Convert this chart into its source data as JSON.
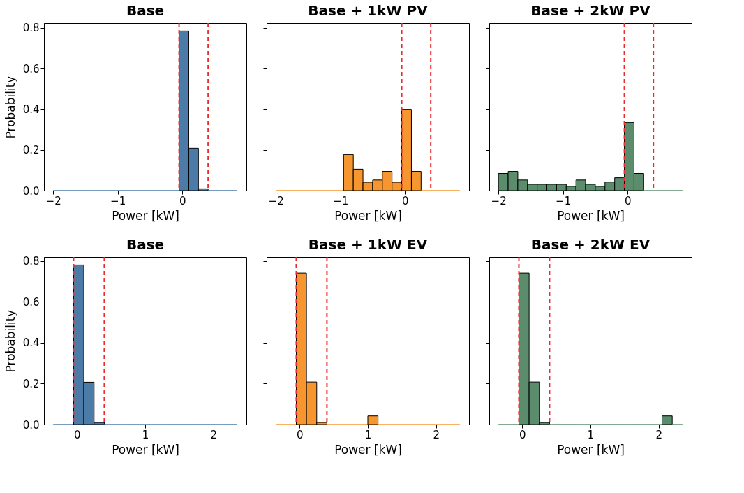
{
  "chart_data": [
    {
      "type": "histogram",
      "title": "Base",
      "xlabel": "Power [kW]",
      "ylabel": "Probability",
      "color": "#4b7ba6",
      "bins": [
        -2.0,
        -1.85,
        -1.7,
        -1.55,
        -1.4,
        -1.25,
        -1.1,
        -0.95,
        -0.8,
        -0.65,
        -0.5,
        -0.35,
        -0.2,
        -0.05,
        0.1,
        0.25,
        0.4,
        0.55,
        0.7,
        0.85
      ],
      "values": [
        0,
        0,
        0,
        0,
        0,
        0,
        0,
        0,
        0,
        0,
        0,
        0,
        0,
        0.784,
        0.208,
        0.009,
        0,
        0,
        0
      ],
      "xlim": [
        -2.1425,
        0.9925
      ],
      "xticks": [
        -2,
        -1,
        0
      ],
      "ylim": [
        0,
        0.823
      ],
      "yticks": [
        {
          "value": 0,
          "label": "0.0"
        },
        {
          "value": 0.2,
          "label": "0.2"
        },
        {
          "value": 0.4,
          "label": "0.4"
        },
        {
          "value": 0.6,
          "label": "0.6"
        },
        {
          "value": 0.8,
          "label": "0.8"
        }
      ],
      "grid": false,
      "ref_lines": [
        {
          "axis": "x",
          "value": -0.05,
          "color": "#ee2a2a",
          "line_style": "dashed"
        },
        {
          "axis": "x",
          "value": 0.4,
          "color": "#ee2a2a",
          "line_style": "dashed"
        }
      ]
    },
    {
      "type": "histogram",
      "title": "Base + 1kW PV",
      "xlabel": "Power [kW]",
      "color": "#f7962e",
      "tick_labels": "x",
      "bins": [
        -2.0,
        -1.85,
        -1.7,
        -1.55,
        -1.4,
        -1.25,
        -1.1,
        -0.95,
        -0.8,
        -0.65,
        -0.5,
        -0.35,
        -0.2,
        -0.05,
        0.1,
        0.25,
        0.4,
        0.55,
        0.7,
        0.85
      ],
      "values": [
        0,
        0,
        0,
        0,
        0,
        0,
        0,
        0.177,
        0.105,
        0.041,
        0.052,
        0.094,
        0.041,
        0.399,
        0.094,
        0,
        0,
        0,
        0
      ],
      "xlim": [
        -2.1425,
        0.9925
      ],
      "xticks": [
        -2,
        -1,
        0
      ],
      "ylim": [
        0,
        0.823
      ],
      "yticks": [
        0,
        0.2,
        0.4,
        0.6,
        0.8
      ],
      "grid": false,
      "ref_lines": [
        {
          "axis": "x",
          "value": -0.05,
          "color": "#ee2a2a",
          "line_style": "dashed"
        },
        {
          "axis": "x",
          "value": 0.4,
          "color": "#ee2a2a",
          "line_style": "dashed"
        }
      ]
    },
    {
      "type": "histogram",
      "title": "Base + 2kW PV",
      "xlabel": "Power [kW]",
      "color": "#5b8d6d",
      "tick_labels": "x",
      "bins": [
        -2.0,
        -1.85,
        -1.7,
        -1.55,
        -1.4,
        -1.25,
        -1.1,
        -0.95,
        -0.8,
        -0.65,
        -0.5,
        -0.35,
        -0.2,
        -0.05,
        0.1,
        0.25,
        0.4,
        0.55,
        0.7,
        0.85
      ],
      "values": [
        0.084,
        0.094,
        0.052,
        0.031,
        0.031,
        0.031,
        0.031,
        0.021,
        0.052,
        0.031,
        0.021,
        0.042,
        0.063,
        0.335,
        0.084,
        0,
        0,
        0,
        0
      ],
      "xlim": [
        -2.1425,
        0.9925
      ],
      "xticks": [
        -2,
        -1,
        0
      ],
      "ylim": [
        0,
        0.823
      ],
      "yticks": [
        0,
        0.2,
        0.4,
        0.6,
        0.8
      ],
      "grid": false,
      "ref_lines": [
        {
          "axis": "x",
          "value": -0.05,
          "color": "#ee2a2a",
          "line_style": "dashed"
        },
        {
          "axis": "x",
          "value": 0.4,
          "color": "#ee2a2a",
          "line_style": "dashed"
        }
      ]
    },
    {
      "type": "histogram",
      "title": "Base",
      "xlabel": "Power [kW]",
      "ylabel": "Probability",
      "color": "#4b7ba6",
      "bins": [
        -0.35,
        -0.2,
        -0.05,
        0.1,
        0.25,
        0.4,
        0.55,
        0.7,
        0.85,
        1.0,
        1.15,
        1.3,
        1.45,
        1.6,
        1.75,
        1.9,
        2.05,
        2.2,
        2.35
      ],
      "values": [
        0,
        0,
        0.781,
        0.207,
        0.01,
        0,
        0,
        0,
        0,
        0,
        0,
        0,
        0,
        0,
        0,
        0,
        0,
        0
      ],
      "xlim": [
        -0.485,
        2.485
      ],
      "xticks": [
        0,
        1,
        2
      ],
      "ylim": [
        0,
        0.82
      ],
      "yticks": [
        {
          "value": 0,
          "label": "0.0"
        },
        {
          "value": 0.2,
          "label": "0.2"
        },
        {
          "value": 0.4,
          "label": "0.4"
        },
        {
          "value": 0.6,
          "label": "0.6"
        },
        {
          "value": 0.8,
          "label": "0.8"
        }
      ],
      "grid": false,
      "ref_lines": [
        {
          "axis": "x",
          "value": -0.05,
          "color": "#ee2a2a",
          "line_style": "dashed"
        },
        {
          "axis": "x",
          "value": 0.4,
          "color": "#ee2a2a",
          "line_style": "dashed"
        }
      ]
    },
    {
      "type": "histogram",
      "title": "Base + 1kW EV",
      "xlabel": "Power [kW]",
      "color": "#f7962e",
      "tick_labels": "x",
      "bins": [
        -0.35,
        -0.2,
        -0.05,
        0.1,
        0.25,
        0.4,
        0.55,
        0.7,
        0.85,
        1.0,
        1.15,
        1.3,
        1.45,
        1.6,
        1.75,
        1.9,
        2.05,
        2.2,
        2.35
      ],
      "values": [
        0,
        0,
        0.741,
        0.208,
        0.01,
        0,
        0,
        0,
        0,
        0.042,
        0,
        0,
        0,
        0,
        0,
        0,
        0,
        0
      ],
      "xlim": [
        -0.485,
        2.485
      ],
      "xticks": [
        0,
        1,
        2
      ],
      "ylim": [
        0,
        0.82
      ],
      "yticks": [
        0,
        0.2,
        0.4,
        0.6,
        0.8
      ],
      "grid": false,
      "ref_lines": [
        {
          "axis": "x",
          "value": -0.05,
          "color": "#ee2a2a",
          "line_style": "dashed"
        },
        {
          "axis": "x",
          "value": 0.4,
          "color": "#ee2a2a",
          "line_style": "dashed"
        }
      ]
    },
    {
      "type": "histogram",
      "title": "Base + 2kW EV",
      "xlabel": "Power [kW]",
      "color": "#5b8d6d",
      "tick_labels": "x",
      "bins": [
        -0.35,
        -0.2,
        -0.05,
        0.1,
        0.25,
        0.4,
        0.55,
        0.7,
        0.85,
        1.0,
        1.15,
        1.3,
        1.45,
        1.6,
        1.75,
        1.9,
        2.05,
        2.2,
        2.35
      ],
      "values": [
        0,
        0,
        0.741,
        0.208,
        0.01,
        0,
        0,
        0,
        0,
        0,
        0,
        0,
        0,
        0,
        0,
        0,
        0.042,
        0
      ],
      "xlim": [
        -0.485,
        2.485
      ],
      "xticks": [
        0,
        1,
        2
      ],
      "ylim": [
        0,
        0.82
      ],
      "yticks": [
        0,
        0.2,
        0.4,
        0.6,
        0.8
      ],
      "grid": false,
      "ref_lines": [
        {
          "axis": "x",
          "value": -0.05,
          "color": "#ee2a2a",
          "line_style": "dashed"
        },
        {
          "axis": "x",
          "value": 0.4,
          "color": "#ee2a2a",
          "line_style": "dashed"
        }
      ]
    }
  ]
}
